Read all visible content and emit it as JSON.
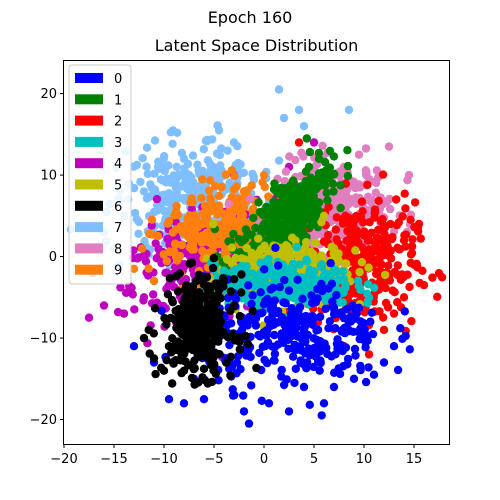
{
  "figure": {
    "suptitle": "Epoch 160"
  },
  "chart_data": {
    "type": "scatter",
    "title": "Latent Space Distribution",
    "xlabel": "",
    "ylabel": "",
    "xlim": [
      -20,
      18.5
    ],
    "ylim": [
      -23,
      24
    ],
    "xticks": [
      -20,
      -15,
      -10,
      -5,
      0,
      5,
      10,
      15
    ],
    "yticks": [
      -20,
      -10,
      0,
      10,
      20
    ],
    "grid": false,
    "legend_position": "top-left",
    "series": [
      {
        "name": "0",
        "color": "#0000ff",
        "cluster": {
          "center": [
            3,
            -9.5
          ],
          "spread": [
            4.5,
            3.2
          ],
          "angle": 0
        },
        "points": [
          [
            -1.5,
            -20.5
          ],
          [
            0.5,
            -18
          ],
          [
            2.5,
            -19
          ],
          [
            -3,
            -17
          ],
          [
            -6,
            -17.5
          ],
          [
            -8,
            -18
          ],
          [
            -9.5,
            -17.5
          ],
          [
            7,
            -16
          ],
          [
            9,
            -15
          ],
          [
            11,
            -14.5
          ],
          [
            13,
            -11
          ],
          [
            12,
            -13
          ],
          [
            -13,
            -11
          ],
          [
            -11,
            -13
          ],
          [
            -7,
            -15
          ],
          [
            6,
            -18
          ],
          [
            4,
            -16
          ],
          [
            -2,
            -19
          ]
        ]
      },
      {
        "name": "1",
        "color": "#008000",
        "cluster": {
          "center": [
            2.5,
            5
          ],
          "spread": [
            1.4,
            4
          ],
          "angle": -40
        },
        "points": [
          [
            4.5,
            11
          ],
          [
            5.5,
            12
          ],
          [
            3.5,
            8
          ],
          [
            0,
            2
          ],
          [
            -1,
            0.5
          ],
          [
            1,
            3.5
          ]
        ]
      },
      {
        "name": "2",
        "color": "#ff0000",
        "cluster": {
          "center": [
            9.5,
            -1
          ],
          "spread": [
            2.8,
            3.8
          ],
          "angle": 0
        },
        "points": [
          [
            16,
            -3.5
          ],
          [
            15,
            -1
          ],
          [
            14,
            2
          ],
          [
            15.5,
            4
          ],
          [
            14,
            -5
          ],
          [
            13,
            -7
          ],
          [
            10.5,
            -12
          ],
          [
            12,
            -9
          ],
          [
            8,
            -11
          ],
          [
            3.5,
            14
          ],
          [
            5,
            9
          ],
          [
            12,
            1
          ]
        ]
      },
      {
        "name": "3",
        "color": "#00bfbf",
        "cluster": {
          "center": [
            2,
            -3.5
          ],
          "spread": [
            3.5,
            1.3
          ],
          "angle": 0
        },
        "points": [
          [
            -3,
            -5
          ],
          [
            7,
            -3
          ],
          [
            6,
            -5
          ]
        ]
      },
      {
        "name": "4",
        "color": "#bf00bf",
        "cluster": {
          "center": [
            -6,
            -1
          ],
          "spread": [
            3.8,
            2.8
          ],
          "angle": 20
        },
        "points": [
          [
            -17.5,
            -7.5
          ],
          [
            -16,
            -6
          ],
          [
            -14,
            -7
          ],
          [
            -12,
            -5
          ],
          [
            3,
            9
          ],
          [
            1,
            7
          ],
          [
            -3,
            10
          ],
          [
            5,
            14
          ],
          [
            2.5,
            11
          ]
        ]
      },
      {
        "name": "5",
        "color": "#bfbf00",
        "cluster": {
          "center": [
            2,
            -2
          ],
          "spread": [
            3,
            2
          ],
          "angle": 10
        },
        "points": [
          [
            -5,
            -6
          ],
          [
            6,
            5
          ],
          [
            7,
            1
          ]
        ]
      },
      {
        "name": "6",
        "color": "#000000",
        "cluster": {
          "center": [
            -6.5,
            -8.5
          ],
          "spread": [
            1.8,
            3
          ],
          "angle": 0
        },
        "points": [
          [
            -11,
            -12.5
          ],
          [
            -10,
            -14
          ],
          [
            -12,
            -10
          ],
          [
            -4,
            -3
          ],
          [
            -3,
            -6
          ],
          [
            -8,
            -14
          ],
          [
            -9.5,
            -11
          ]
        ]
      },
      {
        "name": "7",
        "color": "#7fbfff",
        "cluster": {
          "center": [
            -7,
            7
          ],
          "spread": [
            3.5,
            3.5
          ],
          "angle": 35
        },
        "points": [
          [
            1.5,
            20.5
          ],
          [
            3.5,
            18
          ],
          [
            8.5,
            18
          ],
          [
            -4.5,
            15.5
          ],
          [
            -10,
            11
          ],
          [
            -12,
            8
          ],
          [
            -14,
            5
          ],
          [
            -16,
            3
          ],
          [
            -15,
            1
          ],
          [
            -14.5,
            -1
          ],
          [
            -8,
            12
          ],
          [
            -3,
            14
          ],
          [
            2,
            17
          ],
          [
            4,
            16
          ]
        ]
      },
      {
        "name": "8",
        "color": "#df7fbf",
        "cluster": {
          "center": [
            7,
            6
          ],
          "spread": [
            2.8,
            2.8
          ],
          "angle": 0
        },
        "points": [
          [
            12.5,
            13.5
          ],
          [
            9.5,
            12.5
          ],
          [
            14.5,
            10
          ],
          [
            8,
            11
          ]
        ]
      },
      {
        "name": "9",
        "color": "#ff7f0e",
        "cluster": {
          "center": [
            -4,
            3
          ],
          "spread": [
            3,
            2.8
          ],
          "angle": 35
        },
        "points": [
          [
            0,
            10
          ],
          [
            -2,
            8
          ],
          [
            -13,
            -1.5
          ],
          [
            -11,
            -3
          ]
        ]
      }
    ]
  }
}
